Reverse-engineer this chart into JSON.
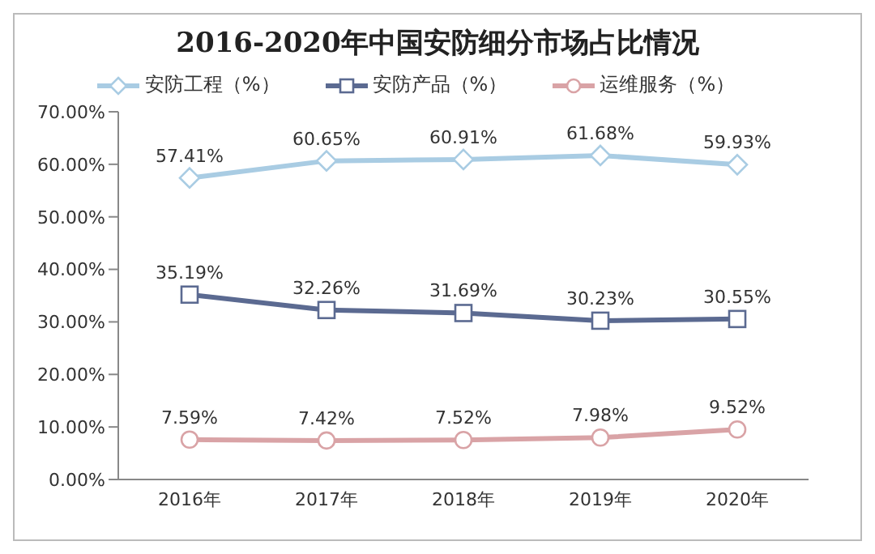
{
  "chart_data": {
    "type": "line",
    "title": "2016-2020年中国安防细分市场占比情况",
    "categories": [
      "2016年",
      "2017年",
      "2018年",
      "2019年",
      "2020年"
    ],
    "series": [
      {
        "name": "安防工程（%）",
        "color": "#a9cce3",
        "marker": "diamond",
        "values": [
          57.41,
          60.65,
          60.91,
          61.68,
          59.93
        ],
        "value_labels": [
          "57.41%",
          "60.65%",
          "60.91%",
          "61.68%",
          "59.93%"
        ]
      },
      {
        "name": "安防产品（%）",
        "color": "#5b6a91",
        "marker": "square",
        "values": [
          35.19,
          32.26,
          31.69,
          30.23,
          30.55
        ],
        "value_labels": [
          "35.19%",
          "32.26%",
          "31.69%",
          "30.23%",
          "30.55%"
        ]
      },
      {
        "name": "运维服务（%）",
        "color": "#d9a3a6",
        "marker": "circle",
        "values": [
          7.59,
          7.42,
          7.52,
          7.98,
          9.52
        ],
        "value_labels": [
          "7.59%",
          "7.42%",
          "7.52%",
          "7.98%",
          "9.52%"
        ]
      }
    ],
    "ylim": [
      0,
      70
    ],
    "yticks": [
      {
        "value": 0,
        "label": "0.00%"
      },
      {
        "value": 10,
        "label": "10.00%"
      },
      {
        "value": 20,
        "label": "20.00%"
      },
      {
        "value": 30,
        "label": "30.00%"
      },
      {
        "value": 40,
        "label": "40.00%"
      },
      {
        "value": 50,
        "label": "50.00%"
      },
      {
        "value": 60,
        "label": "60.00%"
      },
      {
        "value": 70,
        "label": "70.00%"
      }
    ],
    "grid": false,
    "legend": "top",
    "line_style": "solid"
  }
}
